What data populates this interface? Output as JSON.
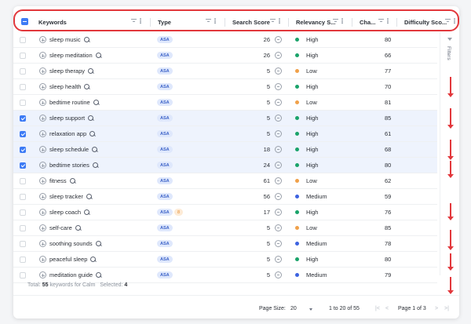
{
  "columns": {
    "keywords": "Keywords",
    "type": "Type",
    "search_score": "Search Score",
    "relevancy": "Relevancy S...",
    "change": "Cha...",
    "difficulty": "Difficulty Sco..."
  },
  "rows": [
    {
      "keyword": "sleep music",
      "type": "ASA",
      "score": "26",
      "relevancy": "High",
      "rel_color": "#1aa36a",
      "change": "80",
      "selected": false,
      "extra": ""
    },
    {
      "keyword": "sleep meditation",
      "type": "ASA",
      "score": "26",
      "relevancy": "High",
      "rel_color": "#1aa36a",
      "change": "66",
      "selected": false,
      "extra": ""
    },
    {
      "keyword": "sleep therapy",
      "type": "ASA",
      "score": "5",
      "relevancy": "Low",
      "rel_color": "#f0a14a",
      "change": "77",
      "selected": false,
      "extra": ""
    },
    {
      "keyword": "sleep health",
      "type": "ASA",
      "score": "5",
      "relevancy": "High",
      "rel_color": "#1aa36a",
      "change": "70",
      "selected": false,
      "extra": ""
    },
    {
      "keyword": "bedtime routine",
      "type": "ASA",
      "score": "5",
      "relevancy": "Low",
      "rel_color": "#f0a14a",
      "change": "81",
      "selected": false,
      "extra": ""
    },
    {
      "keyword": "sleep support",
      "type": "ASA",
      "score": "5",
      "relevancy": "High",
      "rel_color": "#1aa36a",
      "change": "85",
      "selected": true,
      "extra": ""
    },
    {
      "keyword": "relaxation app",
      "type": "ASA",
      "score": "5",
      "relevancy": "High",
      "rel_color": "#1aa36a",
      "change": "61",
      "selected": true,
      "extra": ""
    },
    {
      "keyword": "sleep schedule",
      "type": "ASA",
      "score": "18",
      "relevancy": "High",
      "rel_color": "#1aa36a",
      "change": "68",
      "selected": true,
      "extra": ""
    },
    {
      "keyword": "bedtime stories",
      "type": "ASA",
      "score": "24",
      "relevancy": "High",
      "rel_color": "#1aa36a",
      "change": "80",
      "selected": true,
      "extra": ""
    },
    {
      "keyword": "fitness",
      "type": "ASA",
      "score": "61",
      "relevancy": "Low",
      "rel_color": "#f0a14a",
      "change": "62",
      "selected": false,
      "extra": ""
    },
    {
      "keyword": "sleep tracker",
      "type": "ASA",
      "score": "56",
      "relevancy": "Medium",
      "rel_color": "#3d63e0",
      "change": "59",
      "selected": false,
      "extra": ""
    },
    {
      "keyword": "sleep coach",
      "type": "ASA",
      "score": "17",
      "relevancy": "High",
      "rel_color": "#1aa36a",
      "change": "76",
      "selected": false,
      "extra": "8"
    },
    {
      "keyword": "self-care",
      "type": "ASA",
      "score": "5",
      "relevancy": "Low",
      "rel_color": "#f0a14a",
      "change": "85",
      "selected": false,
      "extra": ""
    },
    {
      "keyword": "soothing sounds",
      "type": "ASA",
      "score": "5",
      "relevancy": "Medium",
      "rel_color": "#3d63e0",
      "change": "78",
      "selected": false,
      "extra": ""
    },
    {
      "keyword": "peaceful sleep",
      "type": "ASA",
      "score": "5",
      "relevancy": "High",
      "rel_color": "#1aa36a",
      "change": "80",
      "selected": false,
      "extra": ""
    },
    {
      "keyword": "meditation guide",
      "type": "ASA",
      "score": "5",
      "relevancy": "Medium",
      "rel_color": "#3d63e0",
      "change": "79",
      "selected": false,
      "extra": ""
    }
  ],
  "filters_label": "Filters",
  "summary": {
    "total_label": "Total:",
    "total_count": "55",
    "total_suffix": "keywords for Calm",
    "selected_label": "Selected:",
    "selected_count": "4"
  },
  "pager": {
    "page_size_label": "Page Size:",
    "page_size": "20",
    "range": "1 to 20 of 55",
    "page": "Page 1 of 3",
    "first": "|<",
    "prev": "<",
    "next": ">",
    "last": ">|"
  },
  "colors": {
    "accent": "#3d7bf5",
    "highlight": "#e2383c"
  }
}
